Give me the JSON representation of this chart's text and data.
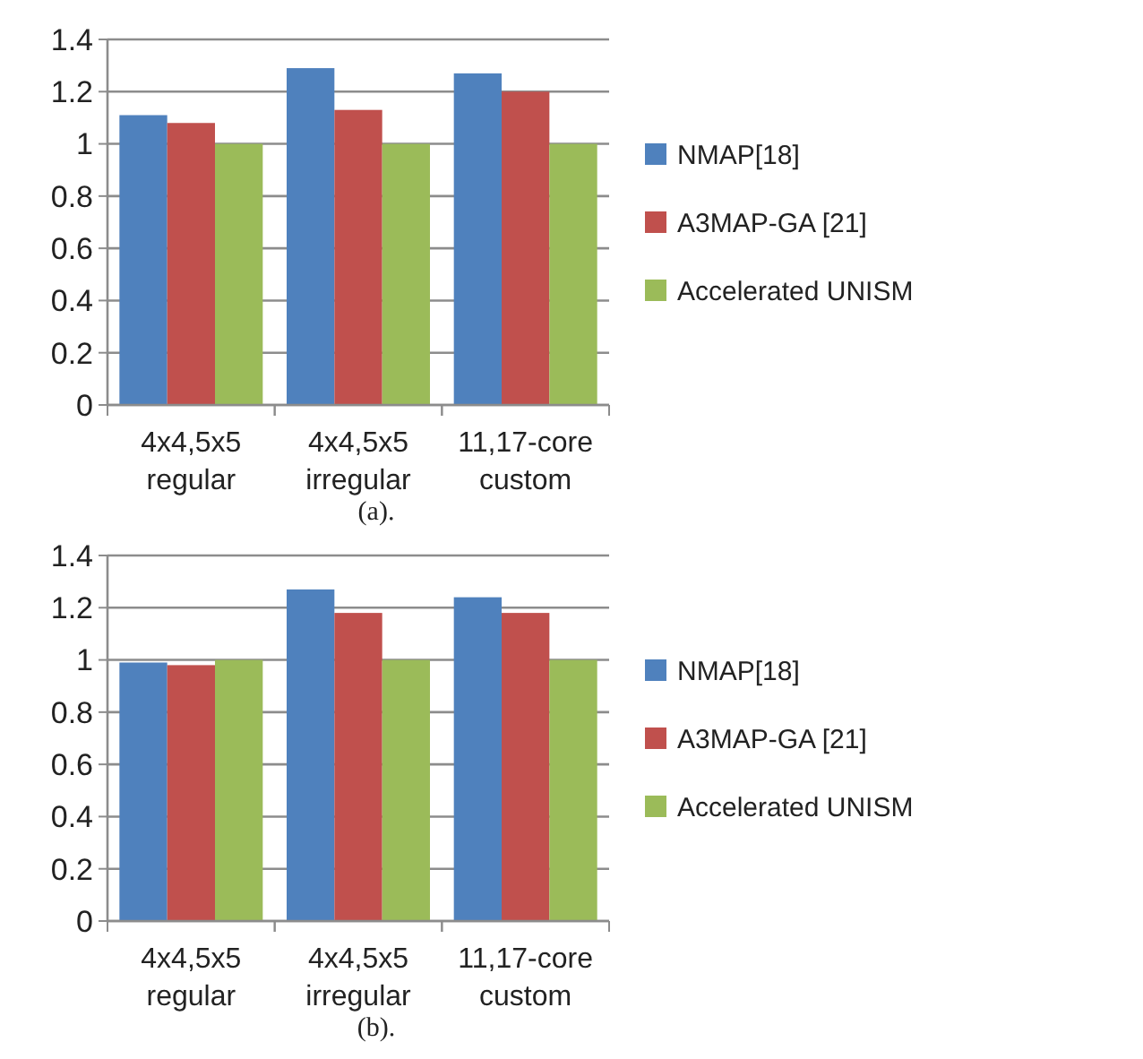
{
  "chart_data": [
    {
      "type": "bar",
      "categories": [
        "4x4,5x5\nregular",
        "4x4,5x5\nirregular",
        "11,17-core\ncustom"
      ],
      "series": [
        {
          "name": "NMAP[18]",
          "color": "#4f81bd",
          "values": [
            1.11,
            1.29,
            1.27
          ]
        },
        {
          "name": "A3MAP-GA [21]",
          "color": "#c0504d",
          "values": [
            1.08,
            1.13,
            1.2
          ]
        },
        {
          "name": "Accelerated UNISM",
          "color": "#9bbb59",
          "values": [
            1.0,
            1.0,
            1.0
          ]
        }
      ],
      "ylim": [
        0,
        1.4
      ],
      "yticks": [
        0,
        0.2,
        0.4,
        0.6,
        0.8,
        1,
        1.2,
        1.4
      ],
      "grid": "y",
      "legend": "right",
      "annotations": [
        "(a)."
      ]
    },
    {
      "type": "bar",
      "categories": [
        "4x4,5x5\nregular",
        "4x4,5x5\nirregular",
        "11,17-core\ncustom"
      ],
      "series": [
        {
          "name": "NMAP[18]",
          "color": "#4f81bd",
          "values": [
            0.99,
            1.27,
            1.24
          ]
        },
        {
          "name": "A3MAP-GA [21]",
          "color": "#c0504d",
          "values": [
            0.98,
            1.18,
            1.18
          ]
        },
        {
          "name": "Accelerated UNISM",
          "color": "#9bbb59",
          "values": [
            1.0,
            1.0,
            1.0
          ]
        }
      ],
      "ylim": [
        0,
        1.4
      ],
      "yticks": [
        0,
        0.2,
        0.4,
        0.6,
        0.8,
        1,
        1.2,
        1.4
      ],
      "grid": "y",
      "legend": "right",
      "annotations": [
        "(b)."
      ]
    }
  ]
}
